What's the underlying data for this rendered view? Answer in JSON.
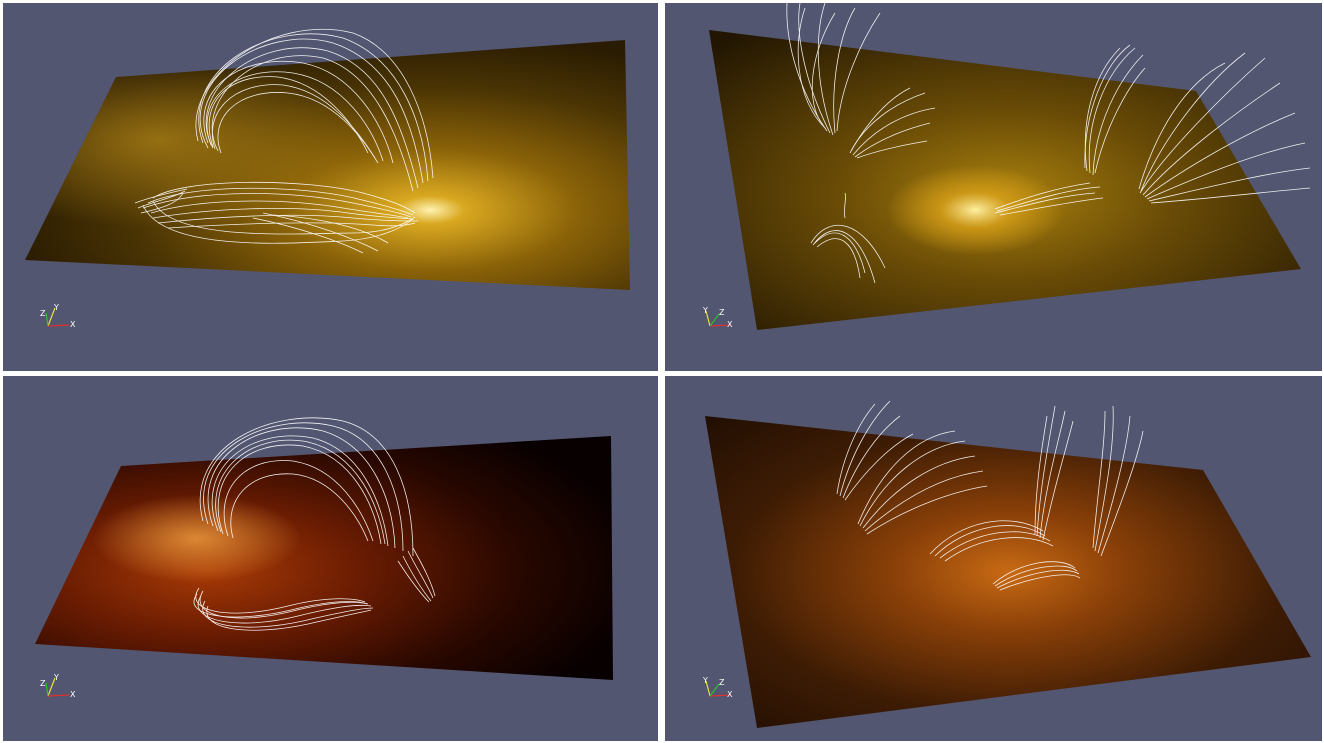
{
  "colors": {
    "viewport_bg": "#525670",
    "field_lines": "#ffffff",
    "axis_x": "#e03030",
    "axis_y": "#e8e040",
    "axis_z": "#30c030"
  },
  "panels": [
    {
      "name": "top-left",
      "image_palette": "gold",
      "axes": {
        "a": "Z",
        "b": "Y",
        "c": "X"
      }
    },
    {
      "name": "top-right",
      "image_palette": "gold",
      "axes": {
        "a": "Y",
        "b": "Z",
        "c": "X"
      }
    },
    {
      "name": "bottom-left",
      "image_palette": "red",
      "axes": {
        "a": "Z",
        "b": "Y",
        "c": "X"
      }
    },
    {
      "name": "bottom-right",
      "image_palette": "orange",
      "axes": {
        "a": "Y",
        "b": "Z",
        "c": "X"
      }
    }
  ]
}
